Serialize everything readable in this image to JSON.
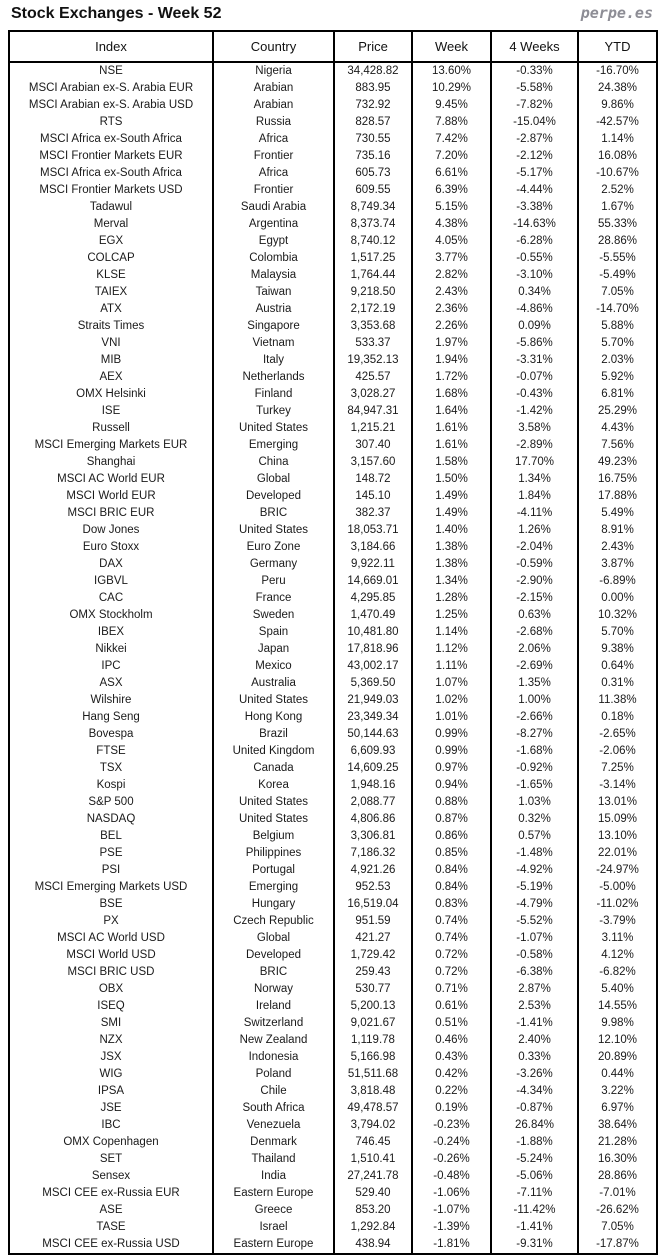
{
  "page_title": "Stock Exchanges - Week 52",
  "brand": "perpe.es",
  "colors": {
    "positive_green": "#3F9B6B",
    "negative_red": "#FF4040",
    "border_black": "#000000",
    "brand_gray": "#8D8D95",
    "text_dark": "#1A1A1A"
  },
  "chart_data": {
    "type": "table",
    "title": "Stock Exchanges - Week 52",
    "columns": [
      "Index",
      "Country",
      "Price",
      "Week",
      "4 Weeks",
      "YTD"
    ],
    "percent_color_key": "7th element gives rendered colors of Week / 4 Weeks / YTD cells: g = green, r = red",
    "rows": [
      [
        "NSE",
        "Nigeria",
        "34,428.82",
        "13.60%",
        "-0.33%",
        "-16.70%",
        "grr"
      ],
      [
        "MSCI Arabian ex-S. Arabia EUR",
        "Arabian",
        "883.95",
        "10.29%",
        "-5.58%",
        "24.38%",
        "grg"
      ],
      [
        "MSCI Arabian ex-S. Arabia USD",
        "Arabian",
        "732.92",
        "9.45%",
        "-7.82%",
        "9.86%",
        "grg"
      ],
      [
        "RTS",
        "Russia",
        "828.57",
        "7.88%",
        "-15.04%",
        "-42.57%",
        "grr"
      ],
      [
        "MSCI Africa ex-South Africa",
        "Africa",
        "730.55",
        "7.42%",
        "-2.87%",
        "1.14%",
        "grg"
      ],
      [
        "MSCI Frontier Markets EUR",
        "Frontier",
        "735.16",
        "7.20%",
        "-2.12%",
        "16.08%",
        "grg"
      ],
      [
        "MSCI Africa ex-South Africa",
        "Africa",
        "605.73",
        "6.61%",
        "-5.17%",
        "-10.67%",
        "grr"
      ],
      [
        "MSCI Frontier Markets USD",
        "Frontier",
        "609.55",
        "6.39%",
        "-4.44%",
        "2.52%",
        "grg"
      ],
      [
        "Tadawul",
        "Saudi Arabia",
        "8,749.34",
        "5.15%",
        "-3.38%",
        "1.67%",
        "grg"
      ],
      [
        "Merval",
        "Argentina",
        "8,373.74",
        "4.38%",
        "-14.63%",
        "55.33%",
        "grg"
      ],
      [
        "EGX",
        "Egypt",
        "8,740.12",
        "4.05%",
        "-6.28%",
        "28.86%",
        "grg"
      ],
      [
        "COLCAP",
        "Colombia",
        "1,517.25",
        "3.77%",
        "-0.55%",
        "-5.55%",
        "grr"
      ],
      [
        "KLSE",
        "Malaysia",
        "1,764.44",
        "2.82%",
        "-3.10%",
        "-5.49%",
        "grr"
      ],
      [
        "TAIEX",
        "Taiwan",
        "9,218.50",
        "2.43%",
        "0.34%",
        "7.05%",
        "ggg"
      ],
      [
        "ATX",
        "Austria",
        "2,172.19",
        "2.36%",
        "-4.86%",
        "-14.70%",
        "grr"
      ],
      [
        "Straits Times",
        "Singapore",
        "3,353.68",
        "2.26%",
        "0.09%",
        "5.88%",
        "ggg"
      ],
      [
        "VNI",
        "Vietnam",
        "533.37",
        "1.97%",
        "-5.86%",
        "5.70%",
        "grg"
      ],
      [
        "MIB",
        "Italy",
        "19,352.13",
        "1.94%",
        "-3.31%",
        "2.03%",
        "grg"
      ],
      [
        "AEX",
        "Netherlands",
        "425.57",
        "1.72%",
        "-0.07%",
        "5.92%",
        "grg"
      ],
      [
        "OMX Helsinki",
        "Finland",
        "3,028.27",
        "1.68%",
        "-0.43%",
        "6.81%",
        "grg"
      ],
      [
        "ISE",
        "Turkey",
        "84,947.31",
        "1.64%",
        "-1.42%",
        "25.29%",
        "grg"
      ],
      [
        "Russell",
        "United States",
        "1,215.21",
        "1.61%",
        "3.58%",
        "4.43%",
        "ggg"
      ],
      [
        "MSCI Emerging Markets EUR",
        "Emerging",
        "307.40",
        "1.61%",
        "-2.89%",
        "7.56%",
        "grg"
      ],
      [
        "Shanghai",
        "China",
        "3,157.60",
        "1.58%",
        "17.70%",
        "49.23%",
        "ggg"
      ],
      [
        "MSCI AC World EUR",
        "Global",
        "148.72",
        "1.50%",
        "1.34%",
        "16.75%",
        "ggg"
      ],
      [
        "MSCI World EUR",
        "Developed",
        "145.10",
        "1.49%",
        "1.84%",
        "17.88%",
        "ggg"
      ],
      [
        "MSCI BRIC EUR",
        "BRIC",
        "382.37",
        "1.49%",
        "-4.11%",
        "5.49%",
        "grg"
      ],
      [
        "Dow Jones",
        "United States",
        "18,053.71",
        "1.40%",
        "1.26%",
        "8.91%",
        "ggg"
      ],
      [
        "Euro Stoxx",
        "Euro Zone",
        "3,184.66",
        "1.38%",
        "-2.04%",
        "2.43%",
        "grg"
      ],
      [
        "DAX",
        "Germany",
        "9,922.11",
        "1.38%",
        "-0.59%",
        "3.87%",
        "grg"
      ],
      [
        "IGBVL",
        "Peru",
        "14,669.01",
        "1.34%",
        "-2.90%",
        "-6.89%",
        "grr"
      ],
      [
        "CAC",
        "France",
        "4,295.85",
        "1.28%",
        "-2.15%",
        "0.00%",
        "grr"
      ],
      [
        "OMX Stockholm",
        "Sweden",
        "1,470.49",
        "1.25%",
        "0.63%",
        "10.32%",
        "ggg"
      ],
      [
        "IBEX",
        "Spain",
        "10,481.80",
        "1.14%",
        "-2.68%",
        "5.70%",
        "grg"
      ],
      [
        "Nikkei",
        "Japan",
        "17,818.96",
        "1.12%",
        "2.06%",
        "9.38%",
        "ggg"
      ],
      [
        "IPC",
        "Mexico",
        "43,002.17",
        "1.11%",
        "-2.69%",
        "0.64%",
        "grg"
      ],
      [
        "ASX",
        "Australia",
        "5,369.50",
        "1.07%",
        "1.35%",
        "0.31%",
        "ggg"
      ],
      [
        "Wilshire",
        "United States",
        "21,949.03",
        "1.02%",
        "1.00%",
        "11.38%",
        "ggg"
      ],
      [
        "Hang Seng",
        "Hong Kong",
        "23,349.34",
        "1.01%",
        "-2.66%",
        "0.18%",
        "grg"
      ],
      [
        "Bovespa",
        "Brazil",
        "50,144.63",
        "0.99%",
        "-8.27%",
        "-2.65%",
        "grr"
      ],
      [
        "FTSE",
        "United Kingdom",
        "6,609.93",
        "0.99%",
        "-1.68%",
        "-2.06%",
        "grr"
      ],
      [
        "TSX",
        "Canada",
        "14,609.25",
        "0.97%",
        "-0.92%",
        "7.25%",
        "grg"
      ],
      [
        "Kospi",
        "Korea",
        "1,948.16",
        "0.94%",
        "-1.65%",
        "-3.14%",
        "grr"
      ],
      [
        "S&P 500",
        "United States",
        "2,088.77",
        "0.88%",
        "1.03%",
        "13.01%",
        "ggg"
      ],
      [
        "NASDAQ",
        "United States",
        "4,806.86",
        "0.87%",
        "0.32%",
        "15.09%",
        "ggg"
      ],
      [
        "BEL",
        "Belgium",
        "3,306.81",
        "0.86%",
        "0.57%",
        "13.10%",
        "ggg"
      ],
      [
        "PSE",
        "Philippines",
        "7,186.32",
        "0.85%",
        "-1.48%",
        "22.01%",
        "grg"
      ],
      [
        "PSI",
        "Portugal",
        "4,921.26",
        "0.84%",
        "-4.92%",
        "-24.97%",
        "grr"
      ],
      [
        "MSCI Emerging Markets USD",
        "Emerging",
        "952.53",
        "0.84%",
        "-5.19%",
        "-5.00%",
        "grr"
      ],
      [
        "BSE",
        "Hungary",
        "16,519.04",
        "0.83%",
        "-4.79%",
        "-11.02%",
        "grr"
      ],
      [
        "PX",
        "Czech Republic",
        "951.59",
        "0.74%",
        "-5.52%",
        "-3.79%",
        "grr"
      ],
      [
        "MSCI AC World USD",
        "Global",
        "421.27",
        "0.74%",
        "-1.07%",
        "3.11%",
        "grg"
      ],
      [
        "MSCI World USD",
        "Developed",
        "1,729.42",
        "0.72%",
        "-0.58%",
        "4.12%",
        "grg"
      ],
      [
        "MSCI BRIC USD",
        "BRIC",
        "259.43",
        "0.72%",
        "-6.38%",
        "-6.82%",
        "grr"
      ],
      [
        "OBX",
        "Norway",
        "530.77",
        "0.71%",
        "2.87%",
        "5.40%",
        "ggg"
      ],
      [
        "ISEQ",
        "Ireland",
        "5,200.13",
        "0.61%",
        "2.53%",
        "14.55%",
        "ggg"
      ],
      [
        "SMI",
        "Switzerland",
        "9,021.67",
        "0.51%",
        "-1.41%",
        "9.98%",
        "grg"
      ],
      [
        "NZX",
        "New Zealand",
        "1,119.78",
        "0.46%",
        "2.40%",
        "12.10%",
        "ggg"
      ],
      [
        "JSX",
        "Indonesia",
        "5,166.98",
        "0.43%",
        "0.33%",
        "20.89%",
        "ggg"
      ],
      [
        "WIG",
        "Poland",
        "51,511.68",
        "0.42%",
        "-3.26%",
        "0.44%",
        "grg"
      ],
      [
        "IPSA",
        "Chile",
        "3,818.48",
        "0.22%",
        "-4.34%",
        "3.22%",
        "grg"
      ],
      [
        "JSE",
        "South Africa",
        "49,478.57",
        "0.19%",
        "-0.87%",
        "6.97%",
        "grg"
      ],
      [
        "IBC",
        "Venezuela",
        "3,794.02",
        "-0.23%",
        "26.84%",
        "38.64%",
        "rgg"
      ],
      [
        "OMX Copenhagen",
        "Denmark",
        "746.45",
        "-0.24%",
        "-1.88%",
        "21.28%",
        "rrg"
      ],
      [
        "SET",
        "Thailand",
        "1,510.41",
        "-0.26%",
        "-5.24%",
        "16.30%",
        "rrg"
      ],
      [
        "Sensex",
        "India",
        "27,241.78",
        "-0.48%",
        "-5.06%",
        "28.86%",
        "rrg"
      ],
      [
        "MSCI CEE ex-Russia EUR",
        "Eastern Europe",
        "529.40",
        "-1.06%",
        "-7.11%",
        "-7.01%",
        "rrr"
      ],
      [
        "ASE",
        "Greece",
        "853.20",
        "-1.07%",
        "-11.42%",
        "-26.62%",
        "rrr"
      ],
      [
        "TASE",
        "Israel",
        "1,292.84",
        "-1.39%",
        "-1.41%",
        "7.05%",
        "rrg"
      ],
      [
        "MSCI CEE ex-Russia USD",
        "Eastern Europe",
        "438.94",
        "-1.81%",
        "-9.31%",
        "-17.87%",
        "rrr"
      ]
    ]
  }
}
